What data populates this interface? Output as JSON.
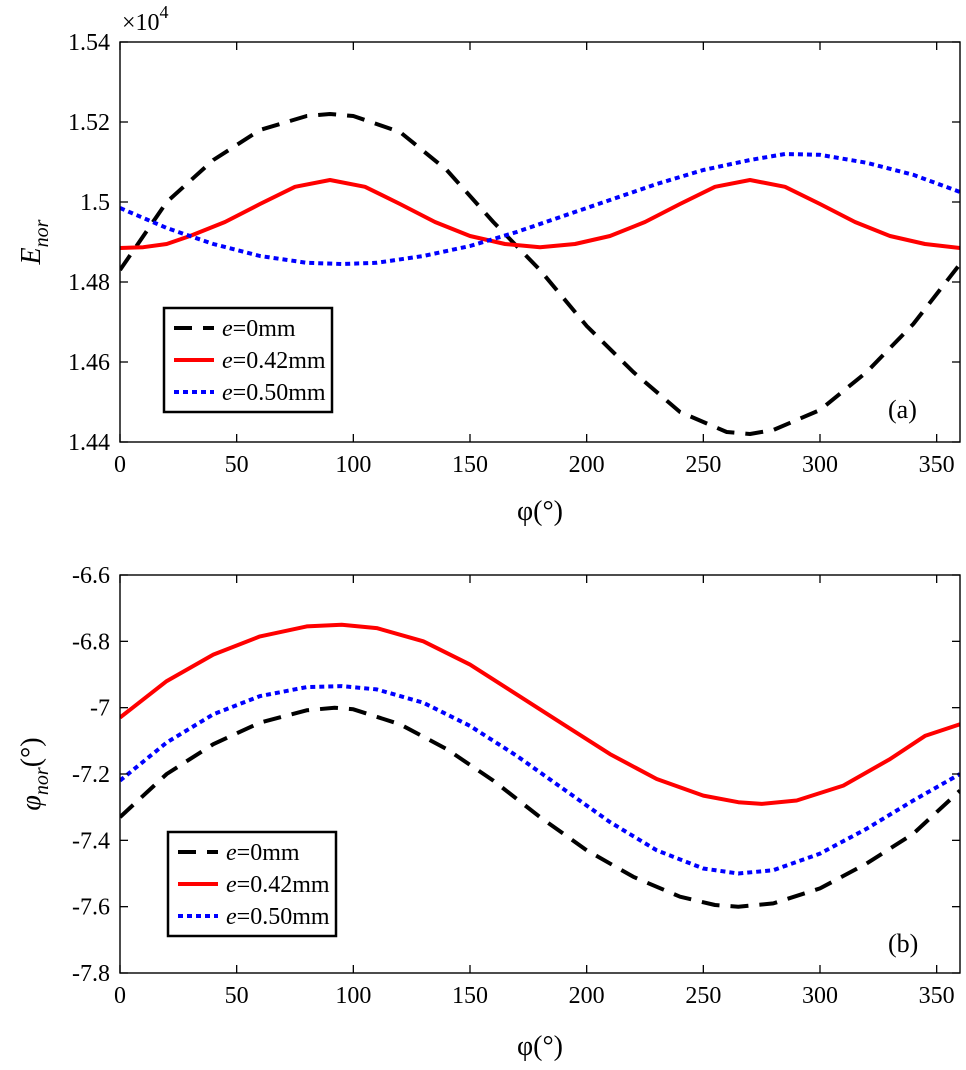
{
  "chart_data": [
    {
      "type": "line",
      "panel_label": "(a)",
      "xlabel": "φ(°)",
      "ylabel_main": "E",
      "ylabel_sub": "nor",
      "y_multiplier": "×10",
      "y_multiplier_exp": "4",
      "xlim": [
        0,
        360
      ],
      "ylim": [
        1.44,
        1.54
      ],
      "xticks": [
        0,
        50,
        100,
        150,
        200,
        250,
        300,
        350
      ],
      "xtick_labels": [
        "0",
        "50",
        "100",
        "150",
        "200",
        "250",
        "300",
        "350"
      ],
      "yticks": [
        1.44,
        1.46,
        1.48,
        1.5,
        1.52,
        1.54
      ],
      "ytick_labels": [
        "1.44",
        "1.46",
        "1.48",
        "1.5",
        "1.52",
        "1.54"
      ],
      "grid": false,
      "legend_position": "bottom-left",
      "series": [
        {
          "name_italic": "e",
          "name_rest": "=0mm",
          "color": "#000000",
          "dash": "dashed",
          "x": [
            0,
            20,
            40,
            60,
            80,
            90,
            100,
            120,
            140,
            160,
            180,
            200,
            220,
            240,
            260,
            270,
            280,
            300,
            320,
            340,
            360
          ],
          "y": [
            1.483,
            1.5,
            1.5105,
            1.518,
            1.5215,
            1.522,
            1.5215,
            1.5175,
            1.508,
            1.495,
            1.483,
            1.469,
            1.4575,
            1.4475,
            1.4425,
            1.442,
            1.443,
            1.448,
            1.4575,
            1.4695,
            1.4845
          ]
        },
        {
          "name_italic": "e",
          "name_rest": "=0.42mm",
          "color": "#ff0000",
          "dash": "solid",
          "x": [
            0,
            10,
            20,
            30,
            45,
            60,
            75,
            90,
            105,
            120,
            135,
            150,
            165,
            180,
            195,
            210,
            225,
            240,
            255,
            270,
            285,
            300,
            315,
            330,
            345,
            360
          ],
          "y": [
            1.4885,
            1.4887,
            1.4895,
            1.4915,
            1.495,
            1.4995,
            1.5038,
            1.5055,
            1.5038,
            1.4995,
            1.495,
            1.4915,
            1.4895,
            1.4887,
            1.4895,
            1.4915,
            1.495,
            1.4995,
            1.5038,
            1.5055,
            1.5038,
            1.4995,
            1.495,
            1.4915,
            1.4895,
            1.4885
          ]
        },
        {
          "name_italic": "e",
          "name_rest": "=0.50mm",
          "color": "#0000ff",
          "dash": "dotted",
          "x": [
            0,
            20,
            40,
            60,
            80,
            95,
            110,
            130,
            150,
            170,
            190,
            210,
            230,
            250,
            270,
            285,
            300,
            320,
            340,
            360
          ],
          "y": [
            1.4985,
            1.4935,
            1.4895,
            1.4865,
            1.4848,
            1.4845,
            1.4848,
            1.4865,
            1.489,
            1.4925,
            1.4965,
            1.5005,
            1.5045,
            1.508,
            1.5105,
            1.512,
            1.5118,
            1.5098,
            1.5068,
            1.5025
          ]
        }
      ]
    },
    {
      "type": "line",
      "panel_label": "(b)",
      "xlabel": "φ(°)",
      "ylabel_main": "φ",
      "ylabel_sub": "nor",
      "ylabel_unit": "(°)",
      "xlim": [
        0,
        360
      ],
      "ylim": [
        -7.8,
        -6.6
      ],
      "xticks": [
        0,
        50,
        100,
        150,
        200,
        250,
        300,
        350
      ],
      "xtick_labels": [
        "0",
        "50",
        "100",
        "150",
        "200",
        "250",
        "300",
        "350"
      ],
      "yticks": [
        -7.8,
        -7.6,
        -7.4,
        -7.2,
        -7.0,
        -6.8,
        -6.6
      ],
      "ytick_labels": [
        "-7.8",
        "-7.6",
        "-7.4",
        "-7.2",
        "-7",
        "-6.8",
        "-6.6"
      ],
      "grid": false,
      "legend_position": "bottom-left",
      "series": [
        {
          "name_italic": "e",
          "name_rest": "=0mm",
          "color": "#000000",
          "dash": "dashed",
          "x": [
            0,
            20,
            40,
            60,
            80,
            92,
            100,
            120,
            140,
            160,
            180,
            200,
            220,
            240,
            255,
            265,
            280,
            300,
            320,
            340,
            360
          ],
          "y": [
            -7.33,
            -7.2,
            -7.11,
            -7.045,
            -7.008,
            -7.0,
            -7.005,
            -7.05,
            -7.125,
            -7.22,
            -7.33,
            -7.43,
            -7.51,
            -7.57,
            -7.595,
            -7.6,
            -7.59,
            -7.545,
            -7.47,
            -7.38,
            -7.25
          ]
        },
        {
          "name_italic": "e",
          "name_rest": "=0.42mm",
          "color": "#ff0000",
          "dash": "solid",
          "x": [
            0,
            20,
            40,
            60,
            80,
            95,
            110,
            130,
            150,
            170,
            190,
            210,
            230,
            250,
            265,
            275,
            290,
            310,
            330,
            345,
            360
          ],
          "y": [
            -7.03,
            -6.92,
            -6.84,
            -6.785,
            -6.755,
            -6.75,
            -6.76,
            -6.8,
            -6.87,
            -6.96,
            -7.05,
            -7.14,
            -7.215,
            -7.265,
            -7.285,
            -7.29,
            -7.28,
            -7.235,
            -7.155,
            -7.085,
            -7.05
          ]
        },
        {
          "name_italic": "e",
          "name_rest": "=0.50mm",
          "color": "#0000ff",
          "dash": "dotted",
          "x": [
            0,
            20,
            40,
            60,
            80,
            95,
            110,
            130,
            150,
            170,
            190,
            210,
            230,
            250,
            265,
            280,
            300,
            320,
            340,
            360
          ],
          "y": [
            -7.22,
            -7.105,
            -7.02,
            -6.965,
            -6.938,
            -6.935,
            -6.945,
            -6.985,
            -7.055,
            -7.145,
            -7.245,
            -7.345,
            -7.43,
            -7.485,
            -7.5,
            -7.49,
            -7.44,
            -7.365,
            -7.28,
            -7.2
          ]
        }
      ]
    }
  ]
}
